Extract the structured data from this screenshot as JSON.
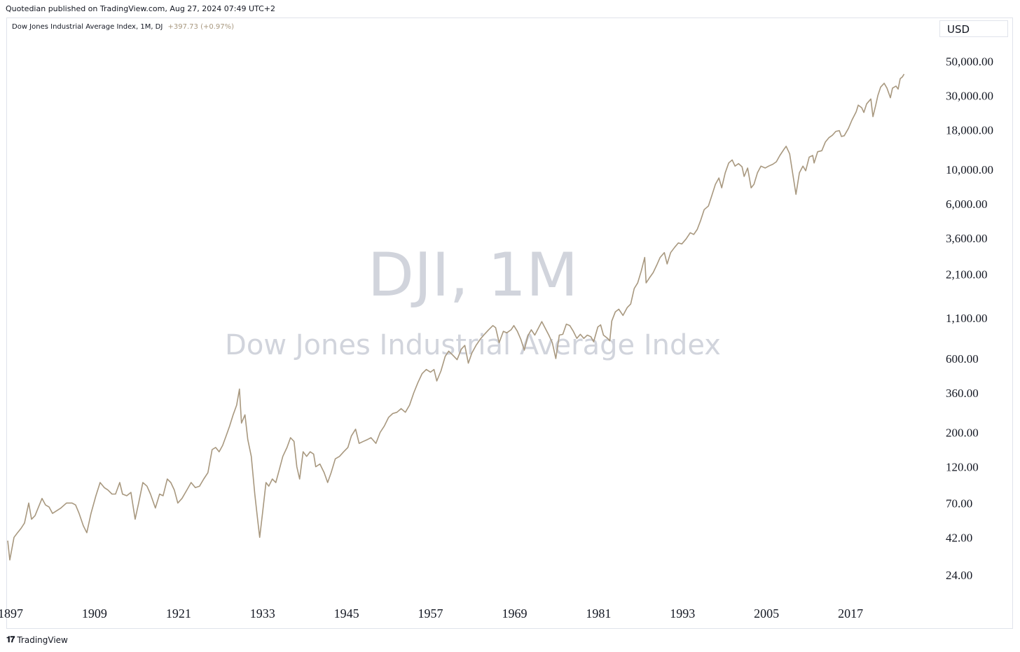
{
  "header": {
    "published": "Quotedian published on TradingView.com, Aug 27, 2024 07:49 UTC+2"
  },
  "legend": {
    "title": "Dow Jones Industrial Average Index, 1M, DJ",
    "change": "+397.73 (+0.97%)"
  },
  "currency": "USD",
  "watermark": {
    "symbol": "DJI, 1M",
    "name": "Dow Jones Industrial Average Index"
  },
  "footer": {
    "brand": "TradingView"
  },
  "colors": {
    "line": "#a8987f",
    "watermark": "#d1d4dc",
    "border": "#e0e3eb"
  },
  "chart_data": {
    "type": "line",
    "title": "Dow Jones Industrial Average Index, 1M, DJ",
    "yscale": "log",
    "ylim": [
      16,
      70000
    ],
    "xlim": [
      1896.5,
      2029.3
    ],
    "y_ticks": [
      {
        "value": 50000,
        "label": "50,000.00"
      },
      {
        "value": 30000,
        "label": "30,000.00"
      },
      {
        "value": 18000,
        "label": "18,000.00"
      },
      {
        "value": 10000,
        "label": "10,000.00"
      },
      {
        "value": 6000,
        "label": "6,000.00"
      },
      {
        "value": 3600,
        "label": "3,600.00"
      },
      {
        "value": 2100,
        "label": "2,100.00"
      },
      {
        "value": 1100,
        "label": "1,100.00"
      },
      {
        "value": 600,
        "label": "600.00"
      },
      {
        "value": 360,
        "label": "360.00"
      },
      {
        "value": 200,
        "label": "200.00"
      },
      {
        "value": 120,
        "label": "120.00"
      },
      {
        "value": 70,
        "label": "70.00"
      },
      {
        "value": 42,
        "label": "42.00"
      },
      {
        "value": 24,
        "label": "24.00"
      }
    ],
    "x_ticks": [
      {
        "value": 1897,
        "label": "1897"
      },
      {
        "value": 1909,
        "label": "1909"
      },
      {
        "value": 1921,
        "label": "1921"
      },
      {
        "value": 1933,
        "label": "1933"
      },
      {
        "value": 1945,
        "label": "1945"
      },
      {
        "value": 1957,
        "label": "1957"
      },
      {
        "value": 1969,
        "label": "1969"
      },
      {
        "value": 1981,
        "label": "1981"
      },
      {
        "value": 1993,
        "label": "1993"
      },
      {
        "value": 2005,
        "label": "2005"
      },
      {
        "value": 2017,
        "label": "2017"
      }
    ],
    "series": [
      {
        "values": [
          [
            1896.6,
            40
          ],
          [
            1896.9,
            30
          ],
          [
            1897.5,
            42
          ],
          [
            1898.0,
            45
          ],
          [
            1898.5,
            48
          ],
          [
            1899.0,
            52
          ],
          [
            1899.6,
            70
          ],
          [
            1900.0,
            55
          ],
          [
            1900.5,
            58
          ],
          [
            1901.0,
            66
          ],
          [
            1901.5,
            75
          ],
          [
            1902.0,
            68
          ],
          [
            1902.5,
            66
          ],
          [
            1903.0,
            60
          ],
          [
            1903.5,
            62
          ],
          [
            1904.2,
            65
          ],
          [
            1905.0,
            70
          ],
          [
            1905.8,
            70
          ],
          [
            1906.3,
            68
          ],
          [
            1906.8,
            60
          ],
          [
            1907.4,
            50
          ],
          [
            1907.9,
            45
          ],
          [
            1908.5,
            60
          ],
          [
            1909.2,
            78
          ],
          [
            1909.8,
            95
          ],
          [
            1910.4,
            88
          ],
          [
            1910.9,
            85
          ],
          [
            1911.5,
            80
          ],
          [
            1912.0,
            80
          ],
          [
            1912.6,
            95
          ],
          [
            1913.0,
            80
          ],
          [
            1913.6,
            78
          ],
          [
            1914.2,
            82
          ],
          [
            1914.8,
            55
          ],
          [
            1915.3,
            70
          ],
          [
            1915.9,
            95
          ],
          [
            1916.5,
            90
          ],
          [
            1917.0,
            80
          ],
          [
            1917.7,
            65
          ],
          [
            1918.3,
            80
          ],
          [
            1918.8,
            78
          ],
          [
            1919.4,
            100
          ],
          [
            1919.9,
            95
          ],
          [
            1920.4,
            85
          ],
          [
            1920.9,
            70
          ],
          [
            1921.5,
            75
          ],
          [
            1922.2,
            85
          ],
          [
            1922.8,
            95
          ],
          [
            1923.4,
            88
          ],
          [
            1924.0,
            90
          ],
          [
            1924.6,
            100
          ],
          [
            1925.2,
            110
          ],
          [
            1925.8,
            155
          ],
          [
            1926.3,
            160
          ],
          [
            1926.8,
            150
          ],
          [
            1927.3,
            165
          ],
          [
            1927.8,
            190
          ],
          [
            1928.3,
            220
          ],
          [
            1928.8,
            260
          ],
          [
            1929.3,
            300
          ],
          [
            1929.7,
            381
          ],
          [
            1930.0,
            230
          ],
          [
            1930.5,
            260
          ],
          [
            1930.9,
            180
          ],
          [
            1931.4,
            140
          ],
          [
            1931.9,
            80
          ],
          [
            1932.3,
            55
          ],
          [
            1932.6,
            42
          ],
          [
            1933.0,
            60
          ],
          [
            1933.5,
            95
          ],
          [
            1933.9,
            90
          ],
          [
            1934.4,
            100
          ],
          [
            1934.9,
            95
          ],
          [
            1935.4,
            115
          ],
          [
            1935.9,
            140
          ],
          [
            1936.5,
            160
          ],
          [
            1937.0,
            185
          ],
          [
            1937.5,
            175
          ],
          [
            1937.9,
            120
          ],
          [
            1938.3,
            100
          ],
          [
            1938.8,
            150
          ],
          [
            1939.3,
            140
          ],
          [
            1939.8,
            150
          ],
          [
            1940.3,
            145
          ],
          [
            1940.6,
            120
          ],
          [
            1941.2,
            125
          ],
          [
            1941.8,
            110
          ],
          [
            1942.3,
            95
          ],
          [
            1942.8,
            110
          ],
          [
            1943.4,
            135
          ],
          [
            1944.0,
            140
          ],
          [
            1944.6,
            150
          ],
          [
            1945.2,
            160
          ],
          [
            1945.7,
            190
          ],
          [
            1946.3,
            210
          ],
          [
            1946.8,
            170
          ],
          [
            1947.4,
            175
          ],
          [
            1948.0,
            180
          ],
          [
            1948.5,
            185
          ],
          [
            1949.2,
            170
          ],
          [
            1949.8,
            200
          ],
          [
            1950.4,
            220
          ],
          [
            1951.0,
            250
          ],
          [
            1951.6,
            265
          ],
          [
            1952.2,
            270
          ],
          [
            1952.8,
            285
          ],
          [
            1953.4,
            270
          ],
          [
            1954.0,
            300
          ],
          [
            1954.6,
            360
          ],
          [
            1955.2,
            420
          ],
          [
            1955.8,
            480
          ],
          [
            1956.4,
            510
          ],
          [
            1957.0,
            490
          ],
          [
            1957.5,
            510
          ],
          [
            1957.9,
            430
          ],
          [
            1958.5,
            500
          ],
          [
            1959.1,
            620
          ],
          [
            1959.6,
            670
          ],
          [
            1960.2,
            630
          ],
          [
            1960.8,
            590
          ],
          [
            1961.4,
            690
          ],
          [
            1961.9,
            730
          ],
          [
            1962.4,
            560
          ],
          [
            1962.9,
            650
          ],
          [
            1963.5,
            730
          ],
          [
            1964.1,
            800
          ],
          [
            1964.7,
            860
          ],
          [
            1965.3,
            920
          ],
          [
            1965.9,
            980
          ],
          [
            1966.3,
            950
          ],
          [
            1966.8,
            760
          ],
          [
            1967.4,
            900
          ],
          [
            1967.9,
            880
          ],
          [
            1968.5,
            920
          ],
          [
            1968.9,
            980
          ],
          [
            1969.4,
            900
          ],
          [
            1969.9,
            800
          ],
          [
            1970.4,
            680
          ],
          [
            1970.9,
            840
          ],
          [
            1971.4,
            920
          ],
          [
            1971.9,
            850
          ],
          [
            1972.5,
            960
          ],
          [
            1972.9,
            1040
          ],
          [
            1973.4,
            940
          ],
          [
            1973.9,
            850
          ],
          [
            1974.4,
            760
          ],
          [
            1974.9,
            600
          ],
          [
            1975.4,
            850
          ],
          [
            1975.9,
            860
          ],
          [
            1976.4,
            1000
          ],
          [
            1976.9,
            980
          ],
          [
            1977.4,
            900
          ],
          [
            1977.9,
            810
          ],
          [
            1978.4,
            860
          ],
          [
            1978.9,
            810
          ],
          [
            1979.4,
            850
          ],
          [
            1979.9,
            830
          ],
          [
            1980.3,
            770
          ],
          [
            1980.9,
            960
          ],
          [
            1981.3,
            990
          ],
          [
            1981.7,
            850
          ],
          [
            1982.3,
            810
          ],
          [
            1982.6,
            780
          ],
          [
            1982.9,
            1050
          ],
          [
            1983.4,
            1200
          ],
          [
            1983.9,
            1250
          ],
          [
            1984.5,
            1140
          ],
          [
            1985.1,
            1280
          ],
          [
            1985.6,
            1350
          ],
          [
            1986.1,
            1700
          ],
          [
            1986.6,
            1850
          ],
          [
            1987.1,
            2200
          ],
          [
            1987.6,
            2700
          ],
          [
            1987.8,
            1850
          ],
          [
            1988.3,
            2000
          ],
          [
            1988.8,
            2150
          ],
          [
            1989.3,
            2400
          ],
          [
            1989.8,
            2700
          ],
          [
            1990.4,
            2900
          ],
          [
            1990.8,
            2450
          ],
          [
            1991.3,
            2900
          ],
          [
            1991.9,
            3150
          ],
          [
            1992.4,
            3350
          ],
          [
            1992.9,
            3300
          ],
          [
            1993.5,
            3550
          ],
          [
            1994.1,
            3900
          ],
          [
            1994.6,
            3800
          ],
          [
            1995.1,
            4100
          ],
          [
            1995.6,
            4700
          ],
          [
            1996.1,
            5500
          ],
          [
            1996.7,
            5800
          ],
          [
            1997.2,
            6800
          ],
          [
            1997.7,
            8000
          ],
          [
            1998.2,
            8800
          ],
          [
            1998.6,
            7600
          ],
          [
            1999.1,
            9500
          ],
          [
            1999.6,
            11000
          ],
          [
            2000.1,
            11500
          ],
          [
            2000.5,
            10500
          ],
          [
            2001.0,
            10900
          ],
          [
            2001.5,
            10400
          ],
          [
            2001.8,
            9000
          ],
          [
            2002.3,
            10200
          ],
          [
            2002.8,
            7600
          ],
          [
            2003.2,
            8000
          ],
          [
            2003.7,
            9500
          ],
          [
            2004.2,
            10500
          ],
          [
            2004.8,
            10200
          ],
          [
            2005.3,
            10500
          ],
          [
            2005.9,
            10800
          ],
          [
            2006.4,
            11200
          ],
          [
            2006.9,
            12300
          ],
          [
            2007.5,
            13500
          ],
          [
            2007.8,
            14100
          ],
          [
            2008.3,
            12600
          ],
          [
            2008.8,
            9000
          ],
          [
            2009.2,
            6900
          ],
          [
            2009.7,
            9500
          ],
          [
            2010.2,
            10500
          ],
          [
            2010.6,
            9800
          ],
          [
            2011.1,
            12000
          ],
          [
            2011.6,
            12300
          ],
          [
            2011.8,
            11000
          ],
          [
            2012.3,
            13000
          ],
          [
            2012.9,
            13200
          ],
          [
            2013.4,
            15000
          ],
          [
            2013.9,
            16000
          ],
          [
            2014.4,
            16600
          ],
          [
            2014.9,
            17600
          ],
          [
            2015.4,
            17800
          ],
          [
            2015.7,
            16300
          ],
          [
            2016.1,
            16500
          ],
          [
            2016.7,
            18400
          ],
          [
            2017.2,
            20800
          ],
          [
            2017.8,
            23500
          ],
          [
            2018.1,
            26000
          ],
          [
            2018.6,
            25000
          ],
          [
            2018.9,
            23300
          ],
          [
            2019.3,
            26500
          ],
          [
            2019.9,
            28500
          ],
          [
            2020.2,
            21900
          ],
          [
            2020.6,
            26000
          ],
          [
            2020.9,
            30000
          ],
          [
            2021.3,
            34000
          ],
          [
            2021.8,
            36000
          ],
          [
            2022.2,
            33500
          ],
          [
            2022.7,
            29000
          ],
          [
            2023.0,
            33500
          ],
          [
            2023.5,
            34500
          ],
          [
            2023.8,
            33000
          ],
          [
            2024.1,
            38500
          ],
          [
            2024.4,
            39500
          ],
          [
            2024.65,
            41250
          ]
        ]
      }
    ]
  }
}
